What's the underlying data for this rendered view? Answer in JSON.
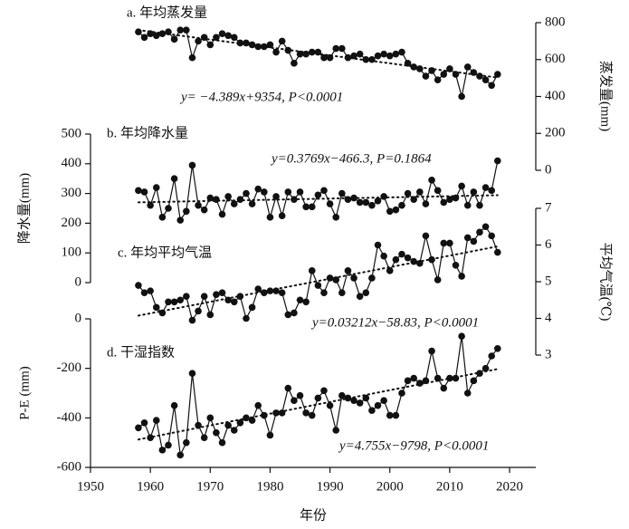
{
  "chart_data": {
    "type": "line",
    "xlabel": "年份",
    "x": [
      1958,
      1959,
      1960,
      1961,
      1962,
      1963,
      1964,
      1965,
      1966,
      1967,
      1968,
      1969,
      1970,
      1971,
      1972,
      1973,
      1974,
      1975,
      1976,
      1977,
      1978,
      1979,
      1980,
      1981,
      1982,
      1983,
      1984,
      1985,
      1986,
      1987,
      1988,
      1989,
      1990,
      1991,
      1992,
      1993,
      1994,
      1995,
      1996,
      1997,
      1998,
      1999,
      2000,
      2001,
      2002,
      2003,
      2004,
      2005,
      2006,
      2007,
      2008,
      2009,
      2010,
      2011,
      2012,
      2013,
      2014,
      2015,
      2016,
      2017,
      2018
    ],
    "xlim": [
      1950,
      2024
    ],
    "xticks": [
      1950,
      1960,
      1970,
      1980,
      1990,
      2000,
      2010,
      2020
    ],
    "series": [
      {
        "name": "a. 年均蒸发量",
        "ylabel": "蒸发量(mm)",
        "axis": "y2",
        "color": "#111111",
        "ylim": [
          0,
          800
        ],
        "yticks": [
          0,
          200,
          400,
          600,
          800
        ],
        "annotation": "y= −4.389x+9354, P<0.0001",
        "values": [
          750,
          720,
          740,
          730,
          740,
          750,
          710,
          760,
          760,
          610,
          700,
          720,
          680,
          720,
          740,
          730,
          720,
          690,
          690,
          680,
          670,
          670,
          680,
          640,
          700,
          650,
          580,
          630,
          630,
          640,
          640,
          610,
          610,
          660,
          660,
          610,
          620,
          630,
          600,
          600,
          620,
          630,
          620,
          630,
          640,
          580,
          560,
          550,
          510,
          540,
          490,
          520,
          550,
          520,
          400,
          560,
          530,
          510,
          490,
          460,
          520
        ]
      },
      {
        "name": "b. 年均降水量",
        "ylabel": "降水量(mm)",
        "axis": "y",
        "color": "#111111",
        "ylim": [
          0,
          500
        ],
        "yticks": [
          0,
          100,
          200,
          300,
          400,
          500
        ],
        "annotation": "y=0.3769x−466.3, P=0.1864",
        "values": [
          310,
          305,
          260,
          320,
          220,
          250,
          350,
          210,
          240,
          395,
          260,
          245,
          285,
          280,
          230,
          290,
          265,
          280,
          300,
          265,
          315,
          305,
          220,
          290,
          225,
          305,
          280,
          305,
          255,
          255,
          295,
          310,
          265,
          220,
          300,
          280,
          285,
          270,
          270,
          260,
          275,
          290,
          240,
          245,
          260,
          300,
          280,
          305,
          265,
          345,
          310,
          270,
          280,
          285,
          325,
          260,
          305,
          260,
          320,
          310,
          410
        ]
      },
      {
        "name": "c. 年均平均气温",
        "ylabel": "平均气温(℃)",
        "axis": "y2",
        "color": "#111111",
        "ylim": [
          3,
          7
        ],
        "yticks": [
          3,
          4,
          5,
          6,
          7
        ],
        "annotation": "y=0.03212x−58.83, P<0.0001",
        "values": [
          4.9,
          4.7,
          4.75,
          4.3,
          4.15,
          4.45,
          4.45,
          4.5,
          4.6,
          3.95,
          4.2,
          4.6,
          4.1,
          4.65,
          4.7,
          4.5,
          4.45,
          4.6,
          4.0,
          4.3,
          4.8,
          4.7,
          4.75,
          4.75,
          4.7,
          4.1,
          4.15,
          4.5,
          4.45,
          5.3,
          4.9,
          4.7,
          5.1,
          5.05,
          4.7,
          5.3,
          5.1,
          4.6,
          4.7,
          5.1,
          6.0,
          5.7,
          5.3,
          5.6,
          5.75,
          5.65,
          5.55,
          5.5,
          6.25,
          5.6,
          5.05,
          6.05,
          6.05,
          5.45,
          5.15,
          6.2,
          6.1,
          6.35,
          6.5,
          6.25,
          5.8
        ]
      },
      {
        "name": "d. 干湿指数",
        "ylabel": "P-E (mm)",
        "axis": "y",
        "color": "#111111",
        "ylim": [
          -600,
          0
        ],
        "yticks": [
          -600,
          -400,
          -200,
          0
        ],
        "annotation": "y=4.755x−9798, P<0.0001",
        "values": [
          -440,
          -420,
          -480,
          -410,
          -530,
          -510,
          -350,
          -550,
          -500,
          -220,
          -430,
          -480,
          -400,
          -460,
          -500,
          -430,
          -450,
          -420,
          -400,
          -410,
          -350,
          -390,
          -470,
          -380,
          -380,
          -280,
          -330,
          -310,
          -380,
          -390,
          -320,
          -290,
          -350,
          -450,
          -310,
          -320,
          -330,
          -340,
          -320,
          -370,
          -350,
          -330,
          -390,
          -390,
          -300,
          -250,
          -240,
          -260,
          -250,
          -130,
          -240,
          -280,
          -240,
          -240,
          -70,
          -300,
          -250,
          -220,
          -200,
          -150,
          -120
        ]
      }
    ]
  }
}
